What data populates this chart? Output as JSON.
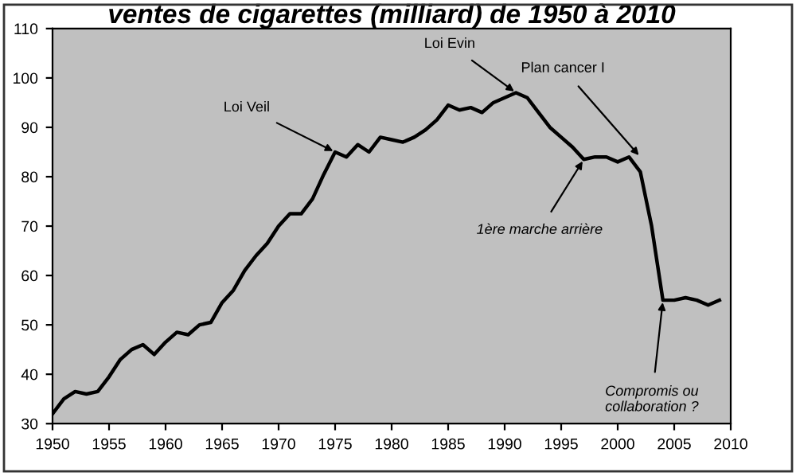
{
  "chart_data": {
    "type": "line",
    "title": "ventes de cigarettes (milliard) de 1950 à 2010",
    "x": [
      1950,
      1951,
      1952,
      1953,
      1954,
      1955,
      1956,
      1957,
      1958,
      1959,
      1960,
      1961,
      1962,
      1963,
      1964,
      1965,
      1966,
      1967,
      1968,
      1969,
      1970,
      1971,
      1972,
      1973,
      1974,
      1975,
      1976,
      1977,
      1978,
      1979,
      1980,
      1981,
      1982,
      1983,
      1984,
      1985,
      1986,
      1987,
      1988,
      1989,
      1990,
      1991,
      1992,
      1993,
      1994,
      1995,
      1996,
      1997,
      1998,
      1999,
      2000,
      2001,
      2002,
      2003,
      2004,
      2005,
      2006,
      2007,
      2008,
      2009
    ],
    "series": [
      {
        "color": "#000000",
        "values": [
          32,
          35,
          36.5,
          36,
          36.5,
          39.5,
          43,
          45,
          46,
          44,
          46.5,
          48.5,
          48,
          50,
          50.5,
          54.5,
          57,
          61,
          64,
          66.5,
          70,
          72.5,
          72.5,
          75.5,
          80.5,
          85,
          84,
          86.5,
          85,
          88,
          87.5,
          87,
          88,
          89.5,
          91.5,
          94.5,
          93.5,
          94,
          93,
          95,
          96,
          97,
          96,
          93,
          90,
          88,
          86,
          83.5,
          84,
          84,
          83,
          84,
          81,
          70,
          55,
          55,
          55.5,
          55,
          54,
          55
        ]
      }
    ],
    "xlim": [
      1950,
      2010
    ],
    "xticks": [
      1950,
      1955,
      1960,
      1965,
      1970,
      1975,
      1980,
      1985,
      1990,
      1995,
      2000,
      2005,
      2010
    ],
    "ylim": [
      30,
      110
    ],
    "yticks": [
      30,
      40,
      50,
      60,
      70,
      80,
      90,
      100,
      110
    ],
    "grid": false,
    "legend": false,
    "marker": "none",
    "line_style": "solid",
    "annotations": [
      {
        "text": "Loi Veil",
        "x": 1975,
        "y": 85
      },
      {
        "text": "Loi Evin",
        "x": 1991,
        "y": 97
      },
      {
        "text": "Plan cancer I",
        "x": 2002,
        "y": 84
      },
      {
        "text": "1ère marche arrière",
        "x": 1997,
        "y": 83.5
      },
      {
        "text": "Compromis ou\ncollaboration ?",
        "x": 2004,
        "y": 55
      }
    ]
  }
}
